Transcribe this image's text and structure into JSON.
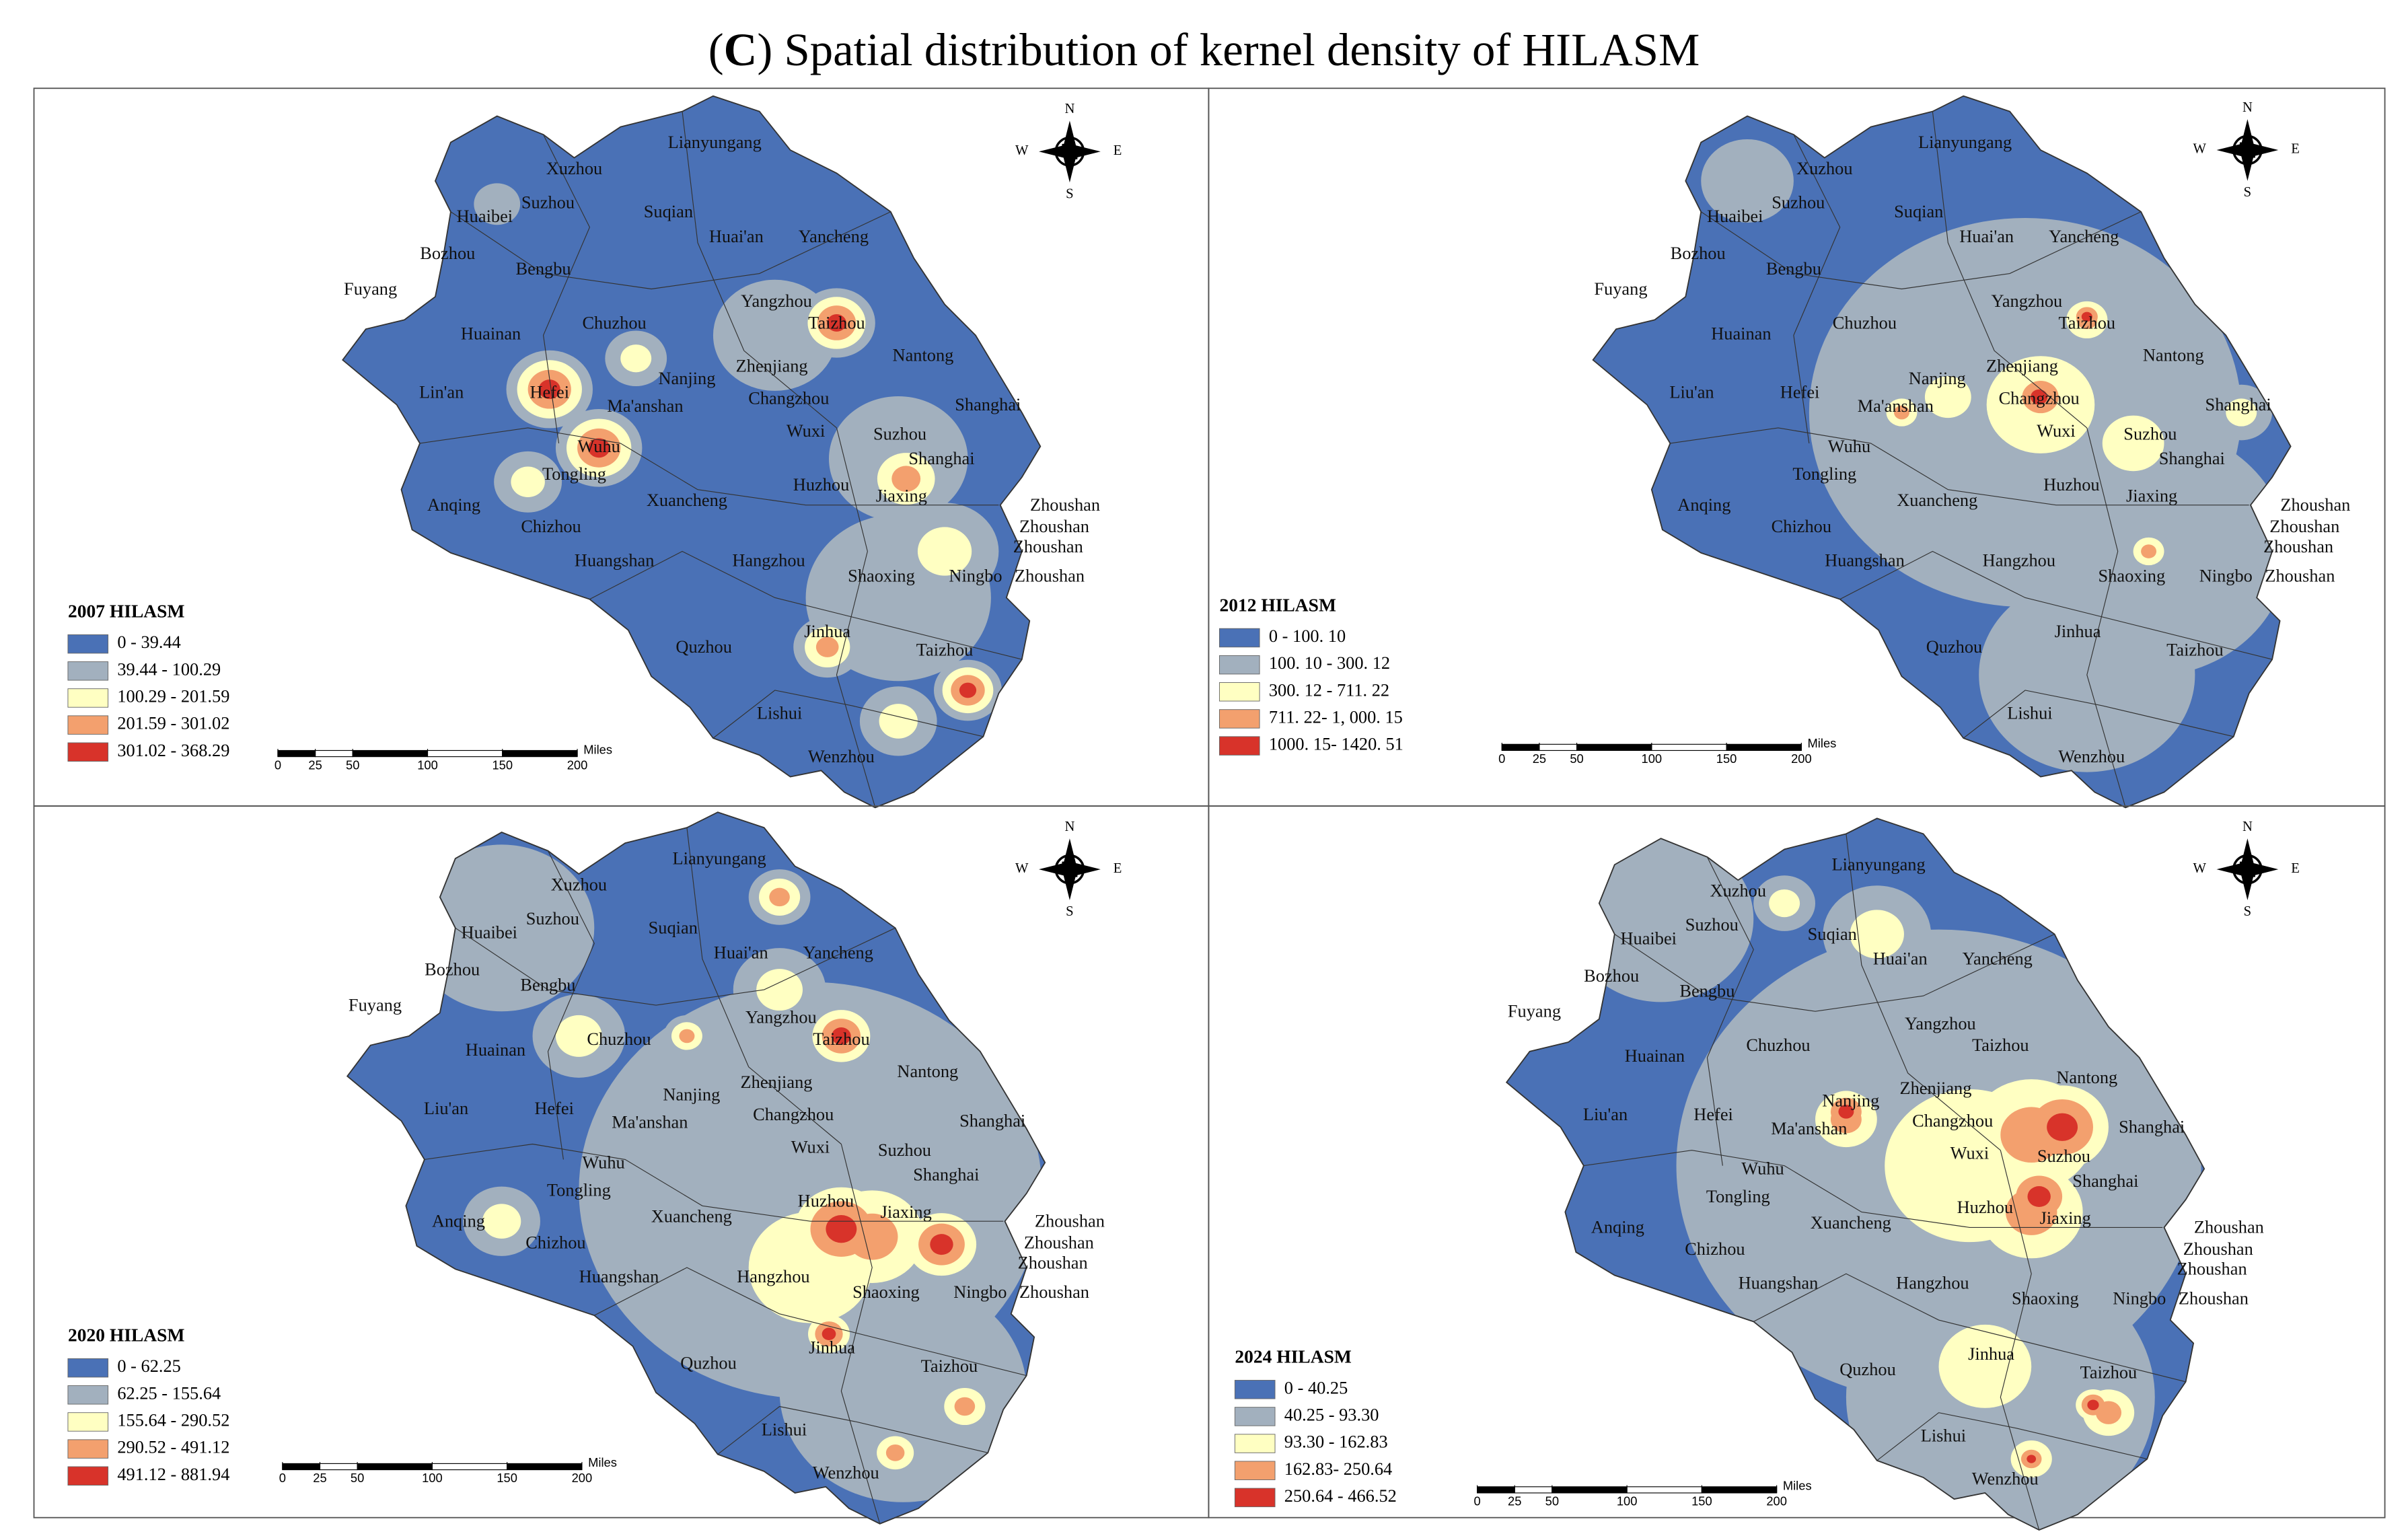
{
  "title": [
    "(",
    "C",
    ") Spatial distribution of kernel density of HILASM"
  ],
  "compass": {
    "north": "N",
    "south": "S",
    "west": "W",
    "east": "E"
  },
  "scale_bar": {
    "ticks": [
      0,
      25,
      50,
      100,
      150,
      200
    ],
    "unit": "Miles"
  },
  "panels": [
    {
      "legend_title": "2007 HILASM",
      "classes": [
        {
          "label": "0 - 39.44",
          "color": "#4a71b6"
        },
        {
          "label": "39.44 - 100.29",
          "color": "#a2b0be"
        },
        {
          "label": "100.29 - 201.59",
          "color": "#ffffc2"
        },
        {
          "label": "201.59 - 301.02",
          "color": "#f3a06e"
        },
        {
          "label": "301.02 - 368.29",
          "color": "#d8332a"
        }
      ],
      "cities": [
        "Lianyungang",
        "Xuzhou",
        "Suzhou",
        "Huaibei",
        "Suqian",
        "Huai'an",
        "Yancheng",
        "Bozhou",
        "Bengbu",
        "Fuyang",
        "Yangzhou",
        "Taizhou",
        "Huainan",
        "Chuzhou",
        "Nanjing",
        "Zhenjiang",
        "Nantong",
        "Lin'an",
        "Hefei",
        "Ma'anshan",
        "Changzhou",
        "Shanghai",
        "Wuxi",
        "Wuhu",
        "Suzhou",
        "Shanghai",
        "Tongling",
        "Huzhou",
        "Jiaxing",
        "Anqing",
        "Xuancheng",
        "Zhoushan",
        "Zhoushan",
        "Chizhou",
        "Zhoushan",
        "Huangshan",
        "Hangzhou",
        "Shaoxing",
        "Ningbo",
        "Zhoushan",
        "Jinhua",
        "Quzhou",
        "Taizhou",
        "Lishui",
        "Wenzhou"
      ]
    },
    {
      "legend_title": "2012 HILASM",
      "classes": [
        {
          "label": "0  -  100. 10",
          "color": "#4a71b6"
        },
        {
          "label": "100. 10  -  300. 12",
          "color": "#a2b0be"
        },
        {
          "label": "300. 12  -  711. 22",
          "color": "#ffffc2"
        },
        {
          "label": "711. 22- 1, 000. 15",
          "color": "#f3a06e"
        },
        {
          "label": "1000. 15- 1420. 51",
          "color": "#d8332a"
        }
      ],
      "cities": [
        "Lianyungang",
        "Xuzhou",
        "Suzhou",
        "Huaibei",
        "Suqian",
        "Huai'an",
        "Yancheng",
        "Bozhou",
        "Bengbu",
        "Fuyang",
        "Yangzhou",
        "Taizhou",
        "Huainan",
        "Chuzhou",
        "Nanjing",
        "Zhenjiang",
        "Nantong",
        "Liu'an",
        "Hefei",
        "Ma'anshan",
        "Changzhou",
        "Shanghai",
        "Wuxi",
        "Wuhu",
        "Suzhou",
        "Shanghai",
        "Tongling",
        "Huzhou",
        "Jiaxing",
        "Anqing",
        "Xuancheng",
        "Zhoushan",
        "Zhoushan",
        "Chizhou",
        "Zhoushan",
        "Huangshan",
        "Hangzhou",
        "Shaoxing",
        "Ningbo",
        "Zhoushan",
        "Jinhua",
        "Quzhou",
        "Taizhou",
        "Lishui",
        "Wenzhou"
      ]
    },
    {
      "legend_title": "2020 HILASM",
      "classes": [
        {
          "label": "0 - 62.25",
          "color": "#4a71b6"
        },
        {
          "label": "62.25 - 155.64",
          "color": "#a2b0be"
        },
        {
          "label": "155.64 - 290.52",
          "color": "#ffffc2"
        },
        {
          "label": "290.52 - 491.12",
          "color": "#f3a06e"
        },
        {
          "label": "491.12 - 881.94",
          "color": "#d8332a"
        }
      ],
      "cities": [
        "Lianyungang",
        "Xuzhou",
        "Suzhou",
        "Huaibei",
        "Suqian",
        "Huai'an",
        "Yancheng",
        "Bozhou",
        "Bengbu",
        "Fuyang",
        "Yangzhou",
        "Taizhou",
        "Huainan",
        "Chuzhou",
        "Nanjing",
        "Zhenjiang",
        "Nantong",
        "Liu'an",
        "Hefei",
        "Ma'anshan",
        "Changzhou",
        "Shanghai",
        "Wuxi",
        "Wuhu",
        "Suzhou",
        "Shanghai",
        "Tongling",
        "Huzhou",
        "Jiaxing",
        "Anqing",
        "Xuancheng",
        "Zhoushan",
        "Zhoushan",
        "Chizhou",
        "Zhoushan",
        "Huangshan",
        "Hangzhou",
        "Shaoxing",
        "Ningbo",
        "Zhoushan",
        "Jinhua",
        "Quzhou",
        "Taizhou",
        "Lishui",
        "Wenzhou"
      ]
    },
    {
      "legend_title": "2024 HILASM",
      "classes": [
        {
          "label": "0 - 40.25",
          "color": "#4a71b6"
        },
        {
          "label": "40.25 - 93.30",
          "color": "#a2b0be"
        },
        {
          "label": "93.30 - 162.83",
          "color": "#ffffc2"
        },
        {
          "label": "162.83- 250.64",
          "color": "#f3a06e"
        },
        {
          "label": "250.64 - 466.52",
          "color": "#d8332a"
        }
      ],
      "cities": [
        "Lianyungang",
        "Xuzhou",
        "Suzhou",
        "Huaibei",
        "Suqian",
        "Huai'an",
        "Yancheng",
        "Bozhou",
        "Bengbu",
        "Fuyang",
        "Yangzhou",
        "Taizhou",
        "Huainan",
        "Chuzhou",
        "Nanjing",
        "Zhenjiang",
        "Nantong",
        "Liu'an",
        "Hefei",
        "Ma'anshan",
        "Changzhou",
        "Shanghai",
        "Wuxi",
        "Wuhu",
        "Suzhou",
        "Shanghai",
        "Tongling",
        "Huzhou",
        "Jiaxing",
        "Anqing",
        "Xuancheng",
        "Zhoushan",
        "Zhoushan",
        "Chizhou",
        "Zhoushan",
        "Huangshan",
        "Hangzhou",
        "Shaoxing",
        "Ningbo",
        "Zhoushan",
        "Jinhua",
        "Quzhou",
        "Taizhou",
        "Lishui",
        "Wenzhou"
      ]
    }
  ]
}
